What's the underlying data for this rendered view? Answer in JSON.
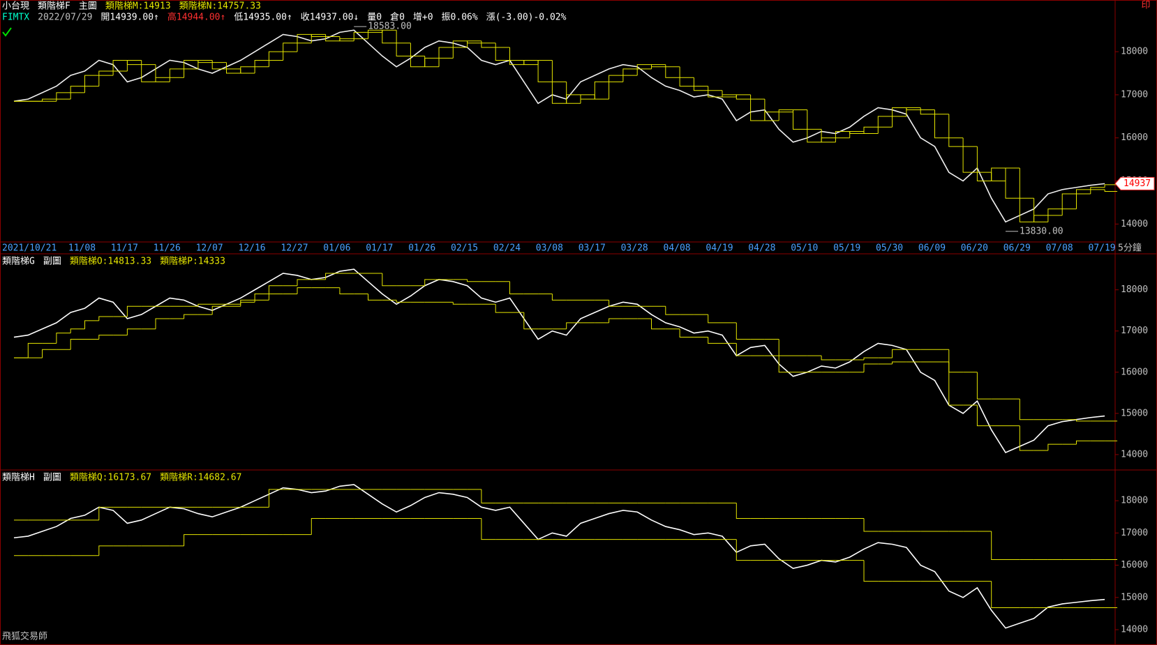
{
  "toolbar": {
    "print": "印"
  },
  "footer": {
    "brand": "飛狐交易師"
  },
  "chart_data": [
    {
      "type": "line",
      "header": [
        {
          "text": "小台現",
          "color": "#ffffff"
        },
        {
          "text": "類階梯F",
          "color": "#ffffff"
        },
        {
          "text": "主圖",
          "color": "#ffffff"
        }
      ],
      "quote": [
        {
          "text": "FIMTX",
          "color": "#00ffcc"
        },
        {
          "text": "2022/07/29",
          "color": "#c0c0c0"
        },
        {
          "text": "開14939.00↑",
          "color": "#ffffff"
        },
        {
          "text": "高14944.00↑",
          "color": "#ff3030"
        },
        {
          "text": "低14935.00↑",
          "color": "#ffffff"
        },
        {
          "text": "收14937.00↓",
          "color": "#ffffff"
        },
        {
          "text": "量0",
          "color": "#ffffff"
        },
        {
          "text": "倉0",
          "color": "#ffffff"
        },
        {
          "text": "增+0",
          "color": "#ffffff"
        },
        {
          "text": "振0.06%",
          "color": "#ffffff"
        },
        {
          "text": "漲(-3.00)-0.02%",
          "color": "#ffffff"
        }
      ],
      "x": [
        "2021/10/21",
        null,
        null,
        "11/08",
        null,
        null,
        "11/17",
        null,
        null,
        "11/26",
        null,
        null,
        "12/07",
        null,
        null,
        "12/16",
        null,
        null,
        "12/27",
        null,
        null,
        "01/06",
        null,
        null,
        "01/17",
        null,
        null,
        "01/26",
        null,
        null,
        "02/15",
        null,
        null,
        "02/24",
        null,
        null,
        "03/08",
        null,
        null,
        "03/17",
        null,
        null,
        "03/28",
        null,
        null,
        "04/08",
        null,
        null,
        "04/19",
        null,
        null,
        "04/28",
        null,
        null,
        "05/10",
        null,
        null,
        "05/19",
        null,
        null,
        "05/30",
        null,
        null,
        "06/09",
        null,
        null,
        "06/20",
        null,
        null,
        "06/29",
        null,
        null,
        "07/08",
        null,
        null,
        "07/19",
        null,
        null
      ],
      "x_unit": "5分鐘",
      "series": [
        {
          "color": "#f0f0f0",
          "values": [
            16850,
            16900,
            17050,
            17200,
            17450,
            17550,
            17800,
            17700,
            17300,
            17400,
            17600,
            17800,
            17750,
            17600,
            17500,
            17650,
            17800,
            18000,
            18200,
            18400,
            18350,
            18250,
            18300,
            18450,
            18500,
            18200,
            17900,
            17650,
            17850,
            18100,
            18250,
            18200,
            18100,
            17800,
            17700,
            17800,
            17300,
            16800,
            17000,
            16900,
            17300,
            17450,
            17600,
            17700,
            17650,
            17400,
            17200,
            17100,
            16950,
            17000,
            16900,
            16400,
            16600,
            16650,
            16200,
            15900,
            16000,
            16150,
            16100,
            16250,
            16500,
            16700,
            16650,
            16550,
            16000,
            15800,
            15200,
            15000,
            15300,
            14600,
            14050,
            14200,
            14350,
            14700,
            14800,
            14850,
            14900,
            14937
          ]
        },
        {
          "name": "類階梯M:14913",
          "color": "#e6e600",
          "step": true,
          "values": [
            16850,
            16850,
            16900,
            17050,
            17200,
            17450,
            17550,
            17800,
            17700,
            17300,
            17400,
            17600,
            17800,
            17750,
            17600,
            17500,
            17650,
            17800,
            18000,
            18200,
            18400,
            18350,
            18250,
            18300,
            18450,
            18500,
            18200,
            17900,
            17650,
            17850,
            18100,
            18250,
            18200,
            18100,
            17800,
            17700,
            17800,
            17300,
            16800,
            17000,
            16900,
            17300,
            17450,
            17600,
            17700,
            17650,
            17400,
            17200,
            17100,
            16950,
            17000,
            16900,
            16400,
            16600,
            16650,
            16200,
            15900,
            16000,
            16150,
            16100,
            16250,
            16500,
            16700,
            16650,
            16550,
            16000,
            15800,
            15200,
            15000,
            15300,
            14600,
            14050,
            14200,
            14350,
            14700,
            14800,
            14850,
            14913
          ]
        },
        {
          "name": "類階梯N:14757.33",
          "color": "#e6e600",
          "step": true,
          "values": [
            16850,
            16850,
            16850,
            16900,
            17050,
            17200,
            17450,
            17550,
            17800,
            17700,
            17300,
            17400,
            17600,
            17800,
            17750,
            17600,
            17500,
            17650,
            17800,
            18000,
            18200,
            18400,
            18350,
            18250,
            18300,
            18450,
            18500,
            18200,
            17900,
            17650,
            17850,
            18100,
            18250,
            18200,
            18100,
            17800,
            17700,
            17800,
            17300,
            16800,
            17000,
            16900,
            17300,
            17450,
            17600,
            17700,
            17650,
            17400,
            17200,
            17100,
            16950,
            17000,
            16900,
            16400,
            16600,
            16650,
            16200,
            15900,
            16000,
            16150,
            16100,
            16250,
            16500,
            16700,
            16650,
            16550,
            16000,
            15800,
            15200,
            15000,
            15300,
            14600,
            14050,
            14200,
            14350,
            14700,
            14800,
            14757.33
          ]
        }
      ],
      "annotations": [
        {
          "text": "18583.00"
        },
        {
          "text": "13830.00"
        }
      ],
      "last_label": "14937",
      "ylim": [
        13600,
        19200
      ],
      "yticks": [
        14000,
        15000,
        16000,
        17000,
        18000
      ]
    },
    {
      "type": "line",
      "header": [
        {
          "text": "類階梯G",
          "color": "#ffffff"
        },
        {
          "text": "副圖",
          "color": "#ffffff"
        }
      ],
      "series": [
        {
          "color": "#ffffff",
          "values": [
            16850,
            16900,
            17050,
            17200,
            17450,
            17550,
            17800,
            17700,
            17300,
            17400,
            17600,
            17800,
            17750,
            17600,
            17500,
            17650,
            17800,
            18000,
            18200,
            18400,
            18350,
            18250,
            18300,
            18450,
            18500,
            18200,
            17900,
            17650,
            17850,
            18100,
            18250,
            18200,
            18100,
            17800,
            17700,
            17800,
            17300,
            16800,
            17000,
            16900,
            17300,
            17450,
            17600,
            17700,
            17650,
            17400,
            17200,
            17100,
            16950,
            17000,
            16900,
            16400,
            16600,
            16650,
            16200,
            15900,
            16000,
            16150,
            16100,
            16250,
            16500,
            16700,
            16650,
            16550,
            16000,
            15800,
            15200,
            15000,
            15300,
            14600,
            14050,
            14200,
            14350,
            14700,
            14800,
            14850,
            14900,
            14937
          ]
        },
        {
          "name": "類階梯O:14813.33",
          "color": "#e6e600",
          "step": true,
          "values": [
            16350,
            16700,
            16700,
            16950,
            17050,
            17250,
            17350,
            17350,
            17600,
            17600,
            17600,
            17600,
            17600,
            17650,
            17650,
            17650,
            17700,
            17900,
            18100,
            18100,
            18250,
            18250,
            18400,
            18400,
            18400,
            18400,
            18100,
            18100,
            18100,
            18250,
            18250,
            18250,
            18200,
            18200,
            18200,
            17900,
            17900,
            17900,
            17750,
            17750,
            17750,
            17750,
            17600,
            17600,
            17600,
            17600,
            17400,
            17400,
            17400,
            17200,
            17200,
            16800,
            16800,
            16800,
            16400,
            16400,
            16400,
            16300,
            16300,
            16300,
            16350,
            16350,
            16550,
            16550,
            16550,
            16550,
            16000,
            16000,
            15350,
            15350,
            15350,
            14850,
            14850,
            14850,
            14850,
            14813.33,
            14813.33,
            14813.33
          ]
        },
        {
          "name": "類階梯P:14333",
          "color": "#e6e600",
          "step": true,
          "values": [
            16350,
            16350,
            16550,
            16550,
            16800,
            16800,
            16900,
            16900,
            17050,
            17050,
            17300,
            17300,
            17400,
            17400,
            17600,
            17600,
            17750,
            17750,
            17900,
            17900,
            18050,
            18050,
            18050,
            17900,
            17900,
            17750,
            17750,
            17700,
            17700,
            17700,
            17700,
            17650,
            17650,
            17650,
            17450,
            17450,
            17050,
            17050,
            17050,
            17200,
            17200,
            17200,
            17300,
            17300,
            17300,
            17050,
            17050,
            16850,
            16850,
            16700,
            16700,
            16400,
            16400,
            16400,
            16000,
            16000,
            16000,
            16000,
            16000,
            16000,
            16200,
            16200,
            16250,
            16250,
            16250,
            16250,
            15200,
            15200,
            14700,
            14700,
            14700,
            14100,
            14100,
            14250,
            14250,
            14333,
            14333,
            14333
          ]
        }
      ],
      "ylim": [
        13660,
        18840
      ],
      "yticks": [
        14000,
        15000,
        16000,
        17000,
        18000
      ]
    },
    {
      "type": "line",
      "header": [
        {
          "text": "類階梯H",
          "color": "#ffffff"
        },
        {
          "text": "副圖",
          "color": "#ffffff"
        }
      ],
      "series": [
        {
          "color": "#ffffff",
          "values": [
            16850,
            16900,
            17050,
            17200,
            17450,
            17550,
            17800,
            17700,
            17300,
            17400,
            17600,
            17800,
            17750,
            17600,
            17500,
            17650,
            17800,
            18000,
            18200,
            18400,
            18350,
            18250,
            18300,
            18450,
            18500,
            18200,
            17900,
            17650,
            17850,
            18100,
            18250,
            18200,
            18100,
            17800,
            17700,
            17800,
            17300,
            16800,
            17000,
            16900,
            17300,
            17450,
            17600,
            17700,
            17650,
            17400,
            17200,
            17100,
            16950,
            17000,
            16900,
            16400,
            16600,
            16650,
            16200,
            15900,
            16000,
            16150,
            16100,
            16250,
            16500,
            16700,
            16650,
            16550,
            16000,
            15800,
            15200,
            15000,
            15300,
            14600,
            14050,
            14200,
            14350,
            14700,
            14800,
            14850,
            14900,
            14937
          ]
        },
        {
          "name": "類階梯Q:16173.67",
          "color": "#e6e600",
          "step": true,
          "values": [
            17400,
            17400,
            17400,
            17400,
            17400,
            17400,
            17800,
            17800,
            17800,
            17800,
            17800,
            17800,
            17800,
            17800,
            17800,
            17800,
            17800,
            17800,
            18350,
            18350,
            18350,
            18350,
            18350,
            18350,
            18350,
            18350,
            18350,
            18350,
            18350,
            18350,
            18350,
            18350,
            18350,
            17930,
            17930,
            17930,
            17930,
            17930,
            17930,
            17930,
            17930,
            17930,
            17930,
            17930,
            17930,
            17930,
            17930,
            17930,
            17930,
            17930,
            17930,
            17450,
            17450,
            17450,
            17450,
            17450,
            17450,
            17450,
            17450,
            17450,
            17050,
            17050,
            17050,
            17050,
            17050,
            17050,
            17050,
            17050,
            17050,
            16173.67,
            16173.67,
            16173.67,
            16173.67,
            16173.67,
            16173.67,
            16173.67,
            16173.67,
            16173.67
          ]
        },
        {
          "name": "類階梯R:14682.67",
          "color": "#e6e600",
          "step": true,
          "values": [
            16300,
            16300,
            16300,
            16300,
            16300,
            16300,
            16600,
            16600,
            16600,
            16600,
            16600,
            16600,
            16950,
            16950,
            16950,
            16950,
            16950,
            16950,
            16950,
            16950,
            16950,
            17450,
            17450,
            17450,
            17450,
            17450,
            17450,
            17450,
            17450,
            17450,
            17450,
            17450,
            17450,
            16800,
            16800,
            16800,
            16800,
            16800,
            16800,
            16800,
            16800,
            16800,
            16800,
            16800,
            16800,
            16800,
            16800,
            16800,
            16800,
            16800,
            16800,
            16150,
            16150,
            16150,
            16150,
            16150,
            16150,
            16150,
            16150,
            16150,
            15500,
            15500,
            15500,
            15500,
            15500,
            15500,
            15500,
            15500,
            15500,
            14682.67,
            14682.67,
            14682.67,
            14682.67,
            14682.67,
            14682.67,
            14682.67,
            14682.67,
            14682.67
          ]
        }
      ],
      "ylim": [
        13590,
        18910
      ],
      "yticks": [
        14000,
        15000,
        16000,
        17000,
        18000
      ]
    }
  ]
}
